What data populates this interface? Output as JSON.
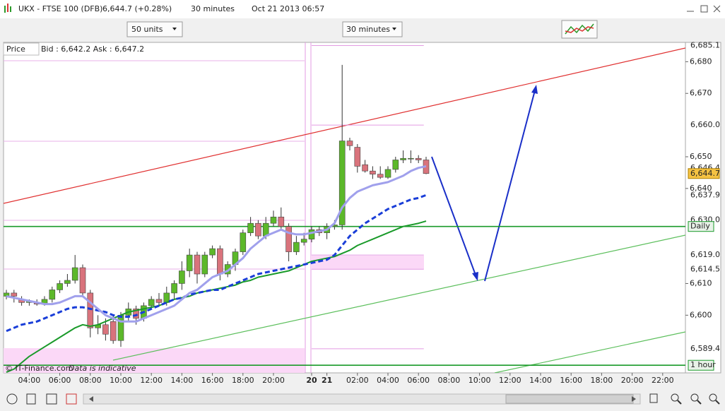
{
  "window": {
    "title": "UKX - FTSE 100 (DFB)",
    "price": "6,644.7 (+0.28%)",
    "interval": "30 minutes",
    "timestamp": "Oct 21 2013 06:57"
  },
  "toolbar": {
    "units": "50 units",
    "interval": "30 minutes"
  },
  "price_panel": {
    "label": "Price",
    "quote": "Bid : 6,642.2 Ask : 6,647.2"
  },
  "footer": {
    "copyright": "© IT-Finance.com",
    "note": "Data is indicative"
  },
  "chart_data": {
    "type": "candlestick",
    "x": [
      0,
      1,
      2,
      3,
      4,
      5,
      6,
      7,
      8,
      9,
      10,
      11,
      12,
      13,
      14,
      15,
      16,
      17,
      18,
      19,
      20,
      21,
      22,
      23,
      24,
      25,
      26,
      27,
      28,
      29,
      30,
      31,
      32,
      33,
      34,
      35,
      36,
      37,
      38,
      39,
      40,
      41,
      42,
      43,
      44,
      45,
      46,
      47,
      48,
      49,
      50,
      51,
      52,
      53,
      54,
      55
    ],
    "open": [
      6606,
      6607,
      6605,
      6604,
      6604,
      6603.5,
      6605,
      6608,
      6610,
      6611,
      6615,
      6607,
      6596,
      6597,
      6598,
      6592,
      6600,
      6602,
      6599,
      6603,
      6605,
      6604,
      6607,
      6610,
      6614,
      6619,
      6613,
      6619,
      6621,
      6613,
      6616,
      6620,
      6626,
      6629,
      6625,
      6629,
      6631,
      6628,
      6620,
      6623,
      6624,
      6627,
      6626,
      6628,
      6628.5,
      6655,
      6653,
      6647.5,
      6645.5,
      6644.5,
      6643.5,
      6646,
      6649,
      6649.5,
      6649.5,
      6649
    ],
    "high": [
      6608,
      6608,
      6606,
      6605,
      6605,
      6606,
      6609,
      6611,
      6613,
      6619,
      6616,
      6608,
      6600,
      6599,
      6600,
      6601,
      6604,
      6603,
      6604,
      6606,
      6607,
      6609,
      6611,
      6617,
      6621,
      6620,
      6620,
      6622,
      6622,
      6617,
      6621,
      6627,
      6631,
      6630,
      6631,
      6633,
      6634,
      6629,
      6625,
      6626,
      6628,
      6628,
      6629,
      6630,
      6679,
      6656,
      6654,
      6649,
      6647,
      6647,
      6647,
      6650,
      6652,
      6652,
      6650.5,
      6650
    ],
    "low": [
      6605,
      6604,
      6603,
      6603,
      6603,
      6603,
      6604,
      6607,
      6609,
      6610,
      6606,
      6593,
      6594,
      6592,
      6591,
      6590,
      6598,
      6597,
      6598,
      6602,
      6603,
      6603,
      6605,
      6608,
      6612,
      6610,
      6612,
      6618,
      6611,
      6612,
      6614,
      6619,
      6625,
      6624,
      6624,
      6628,
      6627,
      6617,
      6619,
      6622,
      6623,
      6625,
      6624,
      6627,
      6627,
      6652,
      6645,
      6645,
      6643,
      6643,
      6643,
      6645,
      6648,
      6648,
      6648,
      6644.5
    ],
    "close": [
      6607,
      6606,
      6604,
      6604.5,
      6603.5,
      6605,
      6608,
      6610,
      6611,
      6615,
      6607,
      6596,
      6597,
      6594,
      6592,
      6600,
      6602,
      6599,
      6603,
      6605,
      6604,
      6607,
      6610,
      6614,
      6619,
      6613,
      6619,
      6621,
      6613,
      6616,
      6620,
      6626,
      6629,
      6625,
      6629,
      6631,
      6628,
      6620,
      6623,
      6624,
      6627,
      6626,
      6628,
      6628.5,
      6655,
      6653.5,
      6647,
      6645.5,
      6644.5,
      6643.5,
      6646,
      6649,
      6649.5,
      6649.5,
      6649,
      6644.7
    ],
    "up_color": "#5cb82a",
    "down_color": "#d9737c",
    "moving_averages": [
      {
        "color": "#1a9a2a",
        "width": 2,
        "dashed": false,
        "values": [
          6582,
          6583,
          6585,
          6587,
          6588.5,
          6590,
          6591.5,
          6593,
          6594.5,
          6596,
          6597,
          6596.5,
          6597,
          6598,
          6599,
          6600,
          6601,
          6601.5,
          6602,
          6602.5,
          6603,
          6604,
          6605,
          6605.5,
          6606,
          6607,
          6607.5,
          6608,
          6608.5,
          6609,
          6609.5,
          6610.5,
          6611,
          6612,
          6612.5,
          6613,
          6613.5,
          6614,
          6615,
          6616,
          6617,
          6617.5,
          6618,
          6618.5,
          6619.5,
          6620.5,
          6622,
          6623,
          6624,
          6625,
          6626,
          6627,
          6628,
          6628.5,
          6629,
          6629.7
        ]
      },
      {
        "color": "#1a3ed8",
        "width": 3,
        "dashed": true,
        "values": [
          6595,
          6596,
          6597,
          6597.5,
          6598,
          6599,
          6600,
          6601,
          6602,
          6602.5,
          6602.5,
          6602,
          6601.5,
          6601,
          6600,
          6599.5,
          6599.5,
          6600,
          6601,
          6602,
          6603,
          6604,
          6605,
          6605.5,
          6606.5,
          6607,
          6607.5,
          6608,
          6608,
          6609,
          6610,
          6611,
          6612,
          6613,
          6613.5,
          6614,
          6614.5,
          6615,
          6615.5,
          6616,
          6616.5,
          6617,
          6617.5,
          6619,
          6622,
          6625,
          6627,
          6629,
          6630.5,
          6632,
          6633.5,
          6634.5,
          6635.5,
          6636.5,
          6637,
          6637.9
        ]
      },
      {
        "color": "#a0a0ec",
        "width": 3,
        "dashed": false,
        "values": [
          6606,
          6605.5,
          6605,
          6604.5,
          6604,
          6603.5,
          6603.5,
          6604,
          6605,
          6606,
          6606,
          6604,
          6602,
          6600,
          6599,
          6598,
          6598,
          6598,
          6599,
          6600,
          6601,
          6602,
          6603,
          6605,
          6607,
          6608,
          6610,
          6612,
          6613,
          6614,
          6616,
          6618,
          6621,
          6623,
          6625,
          6626,
          6627,
          6626,
          6625.5,
          6625.5,
          6626,
          6626.5,
          6627,
          6629,
          6634,
          6637,
          6639,
          6640,
          6641,
          6641.5,
          6642,
          6643,
          6644,
          6645.5,
          6646.5,
          6647
        ]
      }
    ],
    "xlim": [
      -0.37,
      88.98
    ],
    "xticks": [
      {
        "value": 3,
        "label": "04:00"
      },
      {
        "value": 7,
        "label": "06:00"
      },
      {
        "value": 11,
        "label": "08:00"
      },
      {
        "value": 15,
        "label": "10:00"
      },
      {
        "value": 19,
        "label": "12:00"
      },
      {
        "value": 23,
        "label": "14:00"
      },
      {
        "value": 27,
        "label": "16:00"
      },
      {
        "value": 31,
        "label": "18:00"
      },
      {
        "value": 35,
        "label": "20:00"
      },
      {
        "value": 40,
        "label": "20"
      },
      {
        "value": 42,
        "label": "21"
      },
      {
        "value": 46,
        "label": "02:00"
      },
      {
        "value": 50,
        "label": "04:00"
      },
      {
        "value": 54,
        "label": "06:00"
      },
      {
        "value": 58,
        "label": "08:00"
      },
      {
        "value": 62,
        "label": "10:00"
      },
      {
        "value": 66,
        "label": "12:00"
      },
      {
        "value": 70,
        "label": "14:00"
      },
      {
        "value": 74,
        "label": "16:00"
      },
      {
        "value": 78,
        "label": "18:00"
      },
      {
        "value": 82,
        "label": "20:00"
      },
      {
        "value": 86,
        "label": "22:00"
      }
    ],
    "ylim": [
      6581.8,
      6686.1
    ],
    "yticks": [
      {
        "value": 6600,
        "label": "6,600"
      },
      {
        "value": 6610,
        "label": "6,610"
      },
      {
        "value": 6640,
        "label": "6,640"
      },
      {
        "value": 6650,
        "label": "6,650"
      },
      {
        "value": 6670,
        "label": "6,670"
      },
      {
        "value": 6680,
        "label": "6,680"
      }
    ],
    "price_levels": [
      {
        "value": 6685.1,
        "label": "6,685.1",
        "color": "#e39be3",
        "line": "segment"
      },
      {
        "value": 6660.0,
        "label": "6,660.0",
        "color": "#e39be3",
        "line": "segment"
      },
      {
        "value": 6646.4,
        "label": "6,646.4",
        "color": "#b0b0b0",
        "line": "none"
      },
      {
        "value": 6637.9,
        "label": "6,637.9",
        "color": "#1a3ed8",
        "line": "none"
      },
      {
        "value": 6630.0,
        "label": "6,630.0",
        "color": "#6cbf6c",
        "line": "none"
      },
      {
        "value": 6628,
        "label": "Daily",
        "color": "#1a9a2a",
        "line": "full",
        "boxed": true
      },
      {
        "value": 6619.0,
        "label": "6,619.0",
        "color": "#e39be3",
        "line": "segment"
      },
      {
        "value": 6614.5,
        "label": "6,614.5",
        "color": "#e39be3",
        "line": "segment"
      },
      {
        "value": 6589.4,
        "label": "6,589.4",
        "color": "#e39be3",
        "line": "segment"
      },
      {
        "value": 6584.2,
        "label": "1 hour",
        "color": "#1a9a2a",
        "line": "full",
        "boxed": true
      }
    ],
    "current_price": {
      "value": 6644.7,
      "label": "6,644.7",
      "color": "#f5c242"
    }
  }
}
